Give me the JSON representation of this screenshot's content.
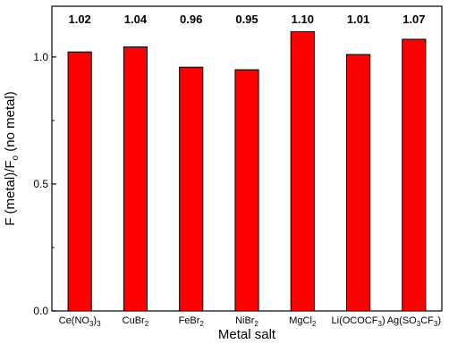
{
  "chart_data": {
    "type": "bar",
    "categories": [
      {
        "base": "Ce(NO",
        "sub": "3",
        "tail": ")",
        "sub2": "3"
      },
      {
        "base": "CuBr",
        "sub": "2",
        "tail": "",
        "sub2": ""
      },
      {
        "base": "FeBr",
        "sub": "2",
        "tail": "",
        "sub2": ""
      },
      {
        "base": "NiBr",
        "sub": "2",
        "tail": "",
        "sub2": ""
      },
      {
        "base": "MgCl",
        "sub": "2",
        "tail": "",
        "sub2": ""
      },
      {
        "base": "Li(OCOCF",
        "sub": "3",
        "tail": ")",
        "sub2": ""
      },
      {
        "base": "Ag(SO",
        "sub": "3",
        "tail": "CF",
        "sub2": "3",
        "tail2": ")"
      }
    ],
    "values": [
      1.02,
      1.04,
      0.96,
      0.95,
      1.1,
      1.01,
      1.07
    ],
    "value_labels": [
      "1.02",
      "1.04",
      "0.96",
      "0.95",
      "1.10",
      "1.01",
      "1.07"
    ],
    "xlabel": "Metal salt",
    "ylabel": {
      "part1": "F (metal)/F",
      "sub": "o",
      "part2": " (no metal)"
    },
    "ylim": [
      0,
      1.2
    ],
    "yticks": [
      0.0,
      0.5,
      1.0
    ],
    "ytick_labels": [
      "0.0",
      "0.5",
      "1.0"
    ],
    "bar_color": "#ff0000",
    "grid": false
  }
}
